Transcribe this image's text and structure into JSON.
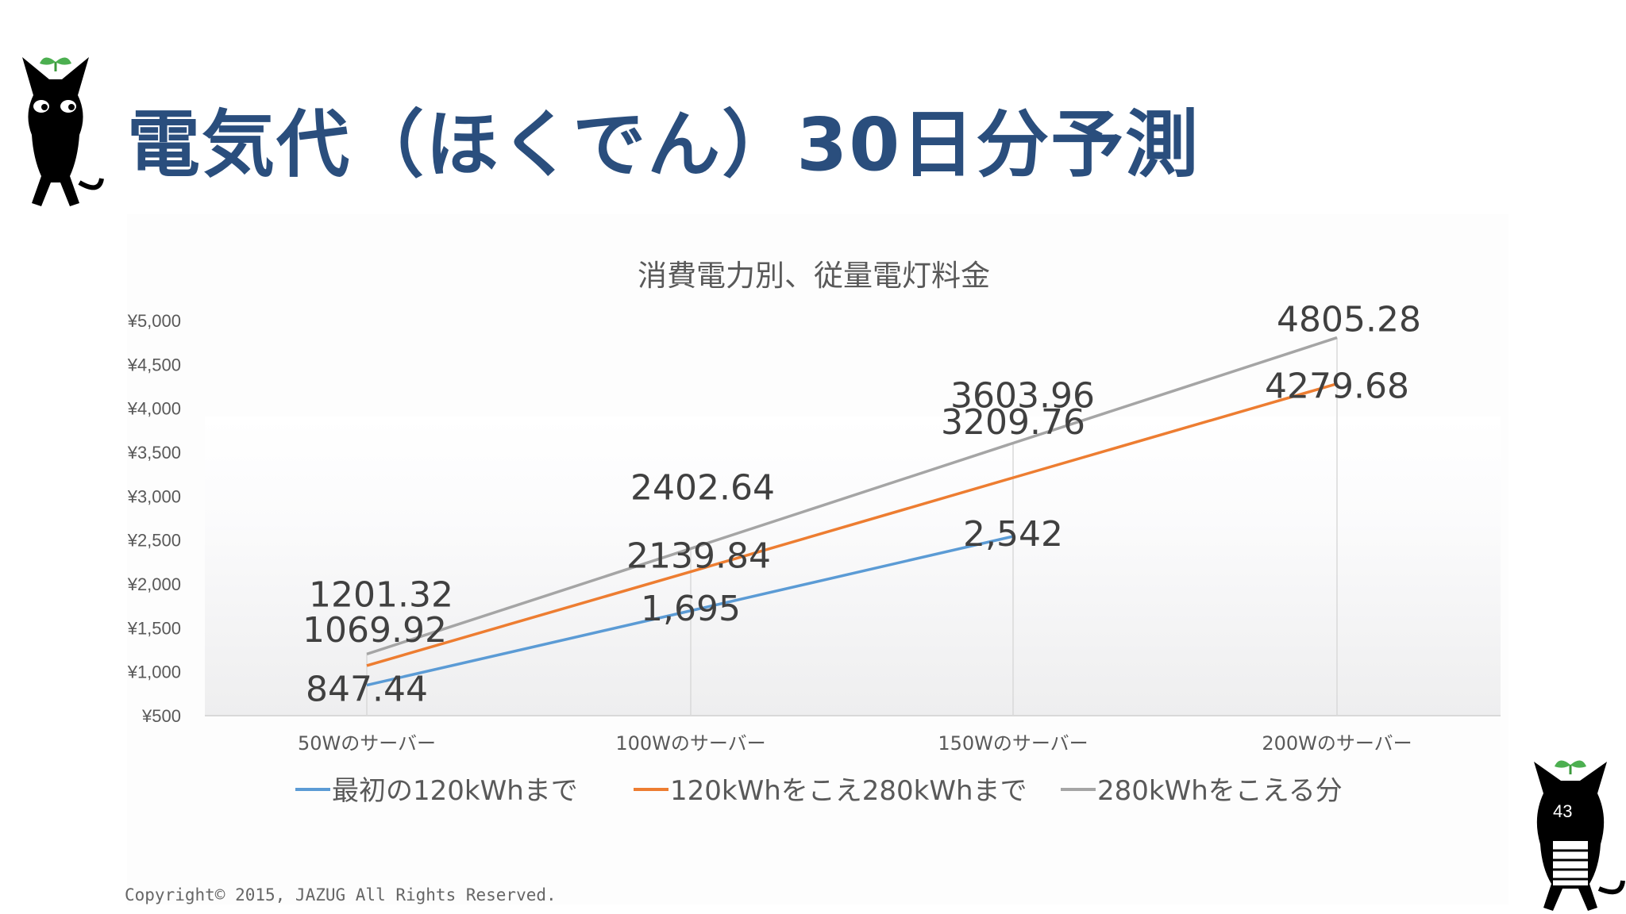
{
  "slide": {
    "title": "電気代（ほくでん）30日分予測",
    "copyright": "Copyright© 2015, JAZUG All Rights Reserved.",
    "page_number": "43"
  },
  "colors": {
    "title": "#2a4e7d",
    "series_blue": "#5b9bd5",
    "series_orange": "#ed7d31",
    "series_gray": "#a5a5a5",
    "axis_text": "#595959",
    "label_text": "#404040"
  },
  "icons": [
    "black-cat-mascot-icon",
    "black-cat-mascot-icon"
  ],
  "chart_data": {
    "type": "line",
    "title": "消費電力別、従量電灯料金",
    "categories": [
      "50Wのサーバー",
      "100Wのサーバー",
      "150Wのサーバー",
      "200Wのサーバー"
    ],
    "ylim": [
      500,
      5000
    ],
    "yticks": [
      "¥5,000",
      "¥4,500",
      "¥4,000",
      "¥3,500",
      "¥3,000",
      "¥2,500",
      "¥2,000",
      "¥1,500",
      "¥1,000",
      "¥500"
    ],
    "ytick_values": [
      5000,
      4500,
      4000,
      3500,
      3000,
      2500,
      2000,
      1500,
      1000,
      500
    ],
    "legend_position": "bottom",
    "series": [
      {
        "name": "最初の120kWhまで",
        "color": "#5b9bd5",
        "values": [
          847.44,
          1695,
          2542,
          null
        ],
        "labels": [
          "847.44",
          "1,695",
          "2,542",
          null
        ]
      },
      {
        "name": "120kWhをこえ280kWhまで",
        "color": "#ed7d31",
        "values": [
          1069.92,
          2139.84,
          3209.76,
          4279.68
        ],
        "labels": [
          "1069.92",
          "2139.84",
          "3209.76",
          "4279.68"
        ]
      },
      {
        "name": "280kWhをこえる分",
        "color": "#a5a5a5",
        "values": [
          1201.32,
          2402.64,
          3603.96,
          4805.28
        ],
        "labels": [
          "1201.32",
          "2402.64",
          "3603.96",
          "4805.28"
        ]
      }
    ]
  }
}
